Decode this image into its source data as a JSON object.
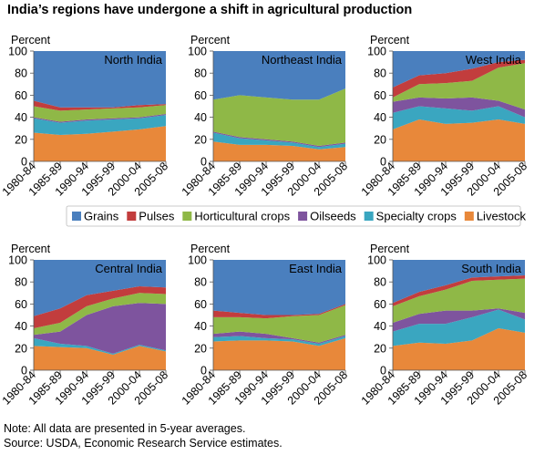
{
  "title": "India’s regions have undergone a shift in agricultural production",
  "note": "Note: All data are presented in 5-year averages.",
  "source": "Source: USDA, Economic Research Service estimates.",
  "colors": {
    "Grains": "#4a7fbe",
    "Pulses": "#c23d3d",
    "Horticultural crops": "#8fb847",
    "Oilseeds": "#7e549e",
    "Specialty crops": "#3aa6c0",
    "Livestock": "#e8883a"
  },
  "legend": [
    "Grains",
    "Pulses",
    "Horticultural crops",
    "Oilseeds",
    "Specialty crops",
    "Livestock"
  ],
  "chart_data": [
    {
      "type": "area",
      "stacked": true,
      "title": "North India",
      "ylabel": "Percent",
      "ylim": [
        0,
        100
      ],
      "yticks": [
        0,
        20,
        40,
        60,
        80,
        100
      ],
      "categories": [
        "1980-84",
        "1985-89",
        "1990-94",
        "1995-99",
        "2000-04",
        "2005-08"
      ],
      "series": [
        {
          "name": "Livestock",
          "values": [
            26,
            24,
            25,
            27,
            29,
            32
          ]
        },
        {
          "name": "Specialty crops",
          "values": [
            13,
            11,
            12,
            11,
            10,
            10
          ]
        },
        {
          "name": "Oilseeds",
          "values": [
            1,
            1,
            1,
            1,
            1,
            1
          ]
        },
        {
          "name": "Horticultural crops",
          "values": [
            10,
            10,
            9,
            9,
            9,
            8
          ]
        },
        {
          "name": "Pulses",
          "values": [
            5,
            3,
            2,
            1,
            2,
            1
          ]
        },
        {
          "name": "Grains",
          "values": [
            45,
            51,
            51,
            51,
            49,
            48
          ]
        }
      ]
    },
    {
      "type": "area",
      "stacked": true,
      "title": "Northeast India",
      "ylabel": "Percent",
      "ylim": [
        0,
        100
      ],
      "yticks": [
        0,
        20,
        40,
        60,
        80,
        100
      ],
      "categories": [
        "1980-84",
        "1985-89",
        "1990-94",
        "1995-99",
        "2000-04",
        "2005-08"
      ],
      "series": [
        {
          "name": "Livestock",
          "values": [
            18,
            15,
            15,
            14,
            11,
            13
          ]
        },
        {
          "name": "Specialty crops",
          "values": [
            8,
            6,
            4,
            3,
            2,
            3
          ]
        },
        {
          "name": "Oilseeds",
          "values": [
            1,
            1,
            1,
            1,
            1,
            1
          ]
        },
        {
          "name": "Horticultural crops",
          "values": [
            29,
            38,
            38,
            38,
            42,
            49
          ]
        },
        {
          "name": "Pulses",
          "values": [
            0,
            0,
            0,
            0,
            0,
            0
          ]
        },
        {
          "name": "Grains",
          "values": [
            44,
            40,
            42,
            44,
            44,
            34
          ]
        }
      ]
    },
    {
      "type": "area",
      "stacked": true,
      "title": "West India",
      "ylabel": "Percent",
      "ylim": [
        0,
        100
      ],
      "yticks": [
        0,
        20,
        40,
        60,
        80,
        100
      ],
      "categories": [
        "1980-84",
        "1985-89",
        "1990-94",
        "1995-99",
        "2000-04",
        "2005-08"
      ],
      "series": [
        {
          "name": "Livestock",
          "values": [
            29,
            38,
            34,
            35,
            38,
            34
          ]
        },
        {
          "name": "Specialty crops",
          "values": [
            15,
            12,
            14,
            11,
            12,
            6
          ]
        },
        {
          "name": "Oilseeds",
          "values": [
            10,
            8,
            9,
            12,
            5,
            7
          ]
        },
        {
          "name": "Horticultural crops",
          "values": [
            4,
            12,
            14,
            15,
            30,
            42
          ]
        },
        {
          "name": "Pulses",
          "values": [
            9,
            8,
            9,
            11,
            5,
            3
          ]
        },
        {
          "name": "Grains",
          "values": [
            33,
            22,
            20,
            16,
            10,
            8
          ]
        }
      ]
    },
    {
      "type": "area",
      "stacked": true,
      "title": "Central India",
      "ylabel": "Percent",
      "ylim": [
        0,
        100
      ],
      "yticks": [
        0,
        20,
        40,
        60,
        80,
        100
      ],
      "categories": [
        "1980-84",
        "1985-89",
        "1990-94",
        "1995-99",
        "2000-04",
        "2005-08"
      ],
      "series": [
        {
          "name": "Livestock",
          "values": [
            22,
            21,
            20,
            14,
            22,
            17
          ]
        },
        {
          "name": "Specialty crops",
          "values": [
            7,
            3,
            2,
            1,
            1,
            1
          ]
        },
        {
          "name": "Oilseeds",
          "values": [
            3,
            11,
            28,
            43,
            38,
            42
          ]
        },
        {
          "name": "Horticultural crops",
          "values": [
            6,
            8,
            8,
            7,
            9,
            9
          ]
        },
        {
          "name": "Pulses",
          "values": [
            11,
            13,
            10,
            7,
            6,
            6
          ]
        },
        {
          "name": "Grains",
          "values": [
            51,
            44,
            32,
            28,
            24,
            25
          ]
        }
      ]
    },
    {
      "type": "area",
      "stacked": true,
      "title": "East India",
      "ylabel": "Percent",
      "ylim": [
        0,
        100
      ],
      "yticks": [
        0,
        20,
        40,
        60,
        80,
        100
      ],
      "categories": [
        "1980-84",
        "1985-89",
        "1990-94",
        "1995-99",
        "2000-04",
        "2005-08"
      ],
      "series": [
        {
          "name": "Livestock",
          "values": [
            26,
            27,
            27,
            26,
            22,
            29
          ]
        },
        {
          "name": "Specialty crops",
          "values": [
            4,
            4,
            2,
            2,
            2,
            2
          ]
        },
        {
          "name": "Oilseeds",
          "values": [
            3,
            4,
            4,
            1,
            1,
            1
          ]
        },
        {
          "name": "Horticultural crops",
          "values": [
            15,
            13,
            14,
            20,
            25,
            27
          ]
        },
        {
          "name": "Pulses",
          "values": [
            6,
            4,
            3,
            1,
            1,
            1
          ]
        },
        {
          "name": "Grains",
          "values": [
            46,
            48,
            50,
            50,
            49,
            40
          ]
        }
      ]
    },
    {
      "type": "area",
      "stacked": true,
      "title": "South India",
      "ylabel": "Percent",
      "ylim": [
        0,
        100
      ],
      "yticks": [
        0,
        20,
        40,
        60,
        80,
        100
      ],
      "categories": [
        "1980-84",
        "1985-89",
        "1990-94",
        "1995-99",
        "2000-04",
        "2005-08"
      ],
      "series": [
        {
          "name": "Livestock",
          "values": [
            22,
            25,
            24,
            27,
            38,
            34
          ]
        },
        {
          "name": "Specialty crops",
          "values": [
            13,
            17,
            18,
            21,
            17,
            12
          ]
        },
        {
          "name": "Oilseeds",
          "values": [
            8,
            9,
            12,
            6,
            1,
            6
          ]
        },
        {
          "name": "Horticultural crops",
          "values": [
            15,
            16,
            19,
            27,
            26,
            31
          ]
        },
        {
          "name": "Pulses",
          "values": [
            3,
            4,
            4,
            3,
            3,
            3
          ]
        },
        {
          "name": "Grains",
          "values": [
            39,
            29,
            23,
            16,
            15,
            14
          ]
        }
      ]
    }
  ]
}
